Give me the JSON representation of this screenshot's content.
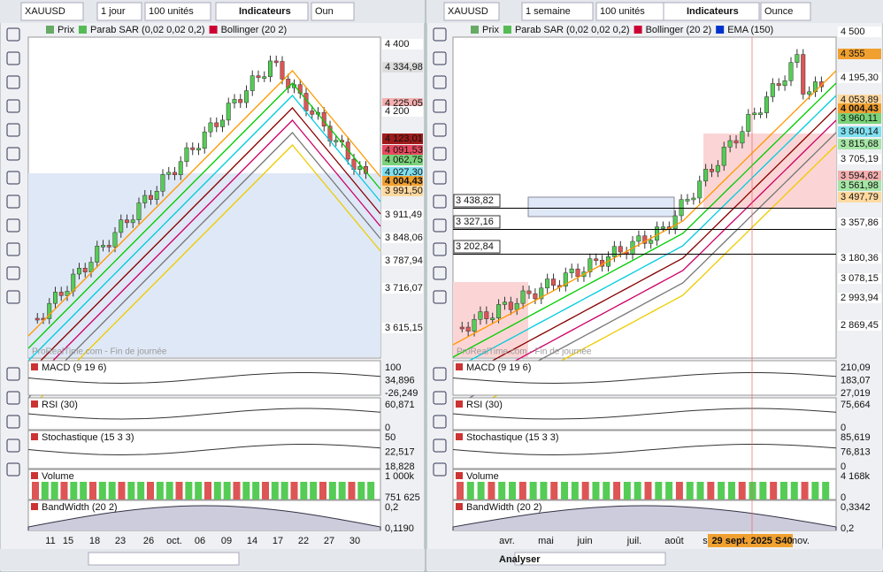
{
  "left": {
    "toolbar": {
      "symbol": "XAUUSD",
      "period": "1 jour",
      "units": "100 unités",
      "indicators": "Indicateurs",
      "extra": "Oun"
    },
    "legend": [
      "Prix",
      "Parab SAR (0,02 0,02 0,2)",
      "Bollinger (20 2)"
    ],
    "price_labels": [
      {
        "text": "4 400",
        "color": "#ffffff"
      },
      {
        "text": "4 334,98",
        "color": "#dddddd"
      },
      {
        "text": "4 225,05",
        "color": "#f4b0b0"
      },
      {
        "text": "4 200",
        "color": "#ffffff"
      },
      {
        "text": "4 123,01",
        "color": "#9e1b1b"
      },
      {
        "text": "4 091,53",
        "color": "#e84a5f"
      },
      {
        "text": "4 062,75",
        "color": "#7ad37a"
      },
      {
        "text": "4 027,30",
        "color": "#7fe0f0"
      },
      {
        "text": "4 004,43",
        "color": "#f0a030"
      },
      {
        "text": "3 991,50",
        "color": "#ffd9a0"
      },
      {
        "text": "3 911,49",
        "color": "#ffffff"
      },
      {
        "text": "3 848,06",
        "color": "#ffffff"
      },
      {
        "text": "3 787,94",
        "color": "#ffffff"
      },
      {
        "text": "3 716,07",
        "color": "#ffffff"
      },
      {
        "text": "3 615,15",
        "color": "#ffffff"
      }
    ],
    "side_labels": [],
    "watermark": "ProRealTime.com - Fin de journée",
    "panels": [
      {
        "title": "MACD (9 19 6)",
        "labels": [
          "100",
          "34,896",
          "-26,249"
        ]
      },
      {
        "title": "RSI (30)",
        "labels": [
          "60,871",
          "0"
        ]
      },
      {
        "title": "Stochastique (15 3 3)",
        "labels": [
          "50",
          "22,517",
          "18,828"
        ]
      },
      {
        "title": "Volume",
        "labels": [
          "1 000k",
          "751 625"
        ]
      },
      {
        "title": "BandWidth (20 2)",
        "labels": [
          "0,2",
          "0,1190"
        ]
      }
    ],
    "x_labels": [
      "11",
      "15",
      "18",
      "23",
      "26",
      "oct.",
      "06",
      "09",
      "14",
      "17",
      "22",
      "27",
      "30"
    ],
    "bottom": []
  },
  "right": {
    "toolbar": {
      "symbol": "XAUUSD",
      "period": "1 semaine",
      "units": "100 unités",
      "indicators": "Indicateurs",
      "extra": "Ounce"
    },
    "legend": [
      "Prix",
      "Parab SAR (0,02 0,02 0,2)",
      "Bollinger (20 2)",
      "EMA (150)"
    ],
    "price_labels": [
      {
        "text": "4 500",
        "color": "#ffffff"
      },
      {
        "text": "4 355",
        "color": "#f0a030"
      },
      {
        "text": "4 195,30",
        "color": "#ffffff"
      },
      {
        "text": "4 053,89",
        "color": "#ffd9a0"
      },
      {
        "text": "4 004,43",
        "color": "#f0a030"
      },
      {
        "text": "3 960,11",
        "color": "#7ad37a"
      },
      {
        "text": "3 840,14",
        "color": "#7fe0f0"
      },
      {
        "text": "3 815,68",
        "color": "#a6e6a6"
      },
      {
        "text": "3 705,19",
        "color": "#ffffff"
      },
      {
        "text": "3 594,62",
        "color": "#f4b0b0"
      },
      {
        "text": "3 561,98",
        "color": "#a6e6a6"
      },
      {
        "text": "3 497,79",
        "color": "#ffd9a0"
      },
      {
        "text": "3 357,86",
        "color": "#ffffff"
      },
      {
        "text": "3 180,36",
        "color": "#ffffff"
      },
      {
        "text": "3 078,15",
        "color": "#ffffff"
      },
      {
        "text": "2 993,94",
        "color": "#ffffff"
      },
      {
        "text": "2 869,45",
        "color": "#ffffff"
      }
    ],
    "side_labels": [
      "3 438,82",
      "3 327,16",
      "3 202,84"
    ],
    "watermark": "ProRealTime.com - Fin de journée",
    "panels": [
      {
        "title": "MACD (9 19 6)",
        "labels": [
          "210,09",
          "183,07",
          "27,019"
        ]
      },
      {
        "title": "RSI (30)",
        "labels": [
          "75,664",
          "0"
        ]
      },
      {
        "title": "Stochastique (15 3 3)",
        "labels": [
          "85,619",
          "76,813",
          "0"
        ]
      },
      {
        "title": "Volume",
        "labels": [
          "4 168k",
          "0"
        ]
      },
      {
        "title": "BandWidth (20 2)",
        "labels": [
          "0,3342",
          "0,2"
        ]
      }
    ],
    "x_labels": [
      "avr.",
      "mai",
      "juin",
      "juil.",
      "août",
      "se",
      "29 sept. 2025 S40",
      "nov."
    ],
    "bottom": [
      "Analyser"
    ]
  }
}
